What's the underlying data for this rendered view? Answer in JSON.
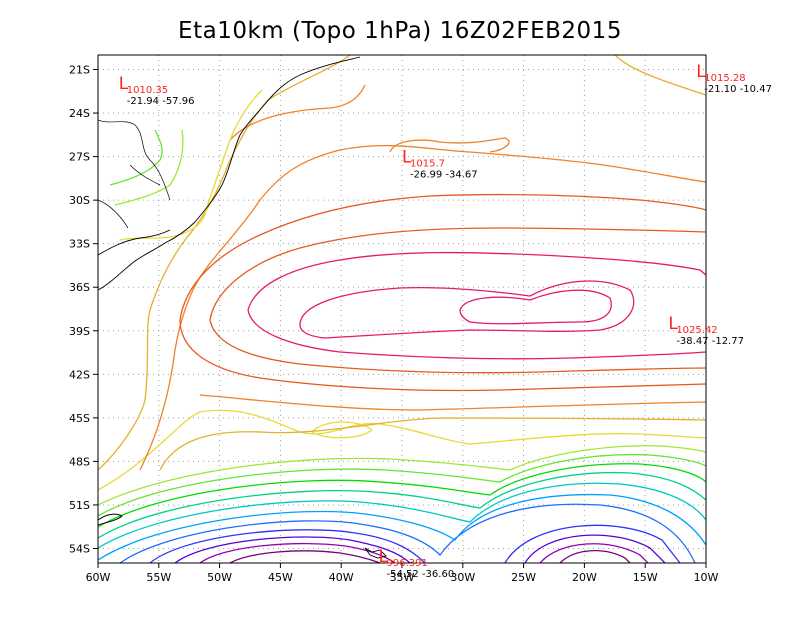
{
  "title": "Eta10km (Topo 1hPa) 16Z02FEB2015",
  "lat_labels": [
    "21S",
    "24S",
    "27S",
    "30S",
    "33S",
    "36S",
    "39S",
    "42S",
    "45S",
    "48S",
    "51S",
    "54S"
  ],
  "lon_labels": [
    "60W",
    "55W",
    "50W",
    "45W",
    "40W",
    "35W",
    "30W",
    "25W",
    "20W",
    "15W",
    "10W"
  ],
  "extent": {
    "lon_min": -60,
    "lon_max": -10,
    "lat_min": -55,
    "lat_max": -20
  },
  "pressure_centers": [
    {
      "letter": "L",
      "value": "1010.35",
      "coords": "-21.94  -57.96",
      "color": "#ff2020"
    },
    {
      "letter": "L",
      "value": "1015.28",
      "coords": "-21.10  -10.47",
      "color": "#ff2020"
    },
    {
      "letter": "L",
      "value": "1015.7",
      "coords": "-26.99  -34.67",
      "color": "#ff2020"
    },
    {
      "letter": "L",
      "value": "1025.42",
      "coords": "-38.47  -12.77",
      "color": "#ff2020"
    },
    {
      "letter": "L",
      "value": "996.391",
      "coords": "-54.52  -36.60",
      "color": "#ff2020"
    }
  ],
  "isobar_colors": [
    "#780078",
    "#9600b4",
    "#5a00dc",
    "#3232ff",
    "#1e6eff",
    "#00a0ff",
    "#00c8c8",
    "#00d28c",
    "#00dc00",
    "#64e632",
    "#a0e632",
    "#e6dc32",
    "#e6af2d",
    "#f08228",
    "#e65a1e",
    "#e6196e"
  ],
  "coastline_color": "#000000",
  "grid_color": "#a0a0a0"
}
